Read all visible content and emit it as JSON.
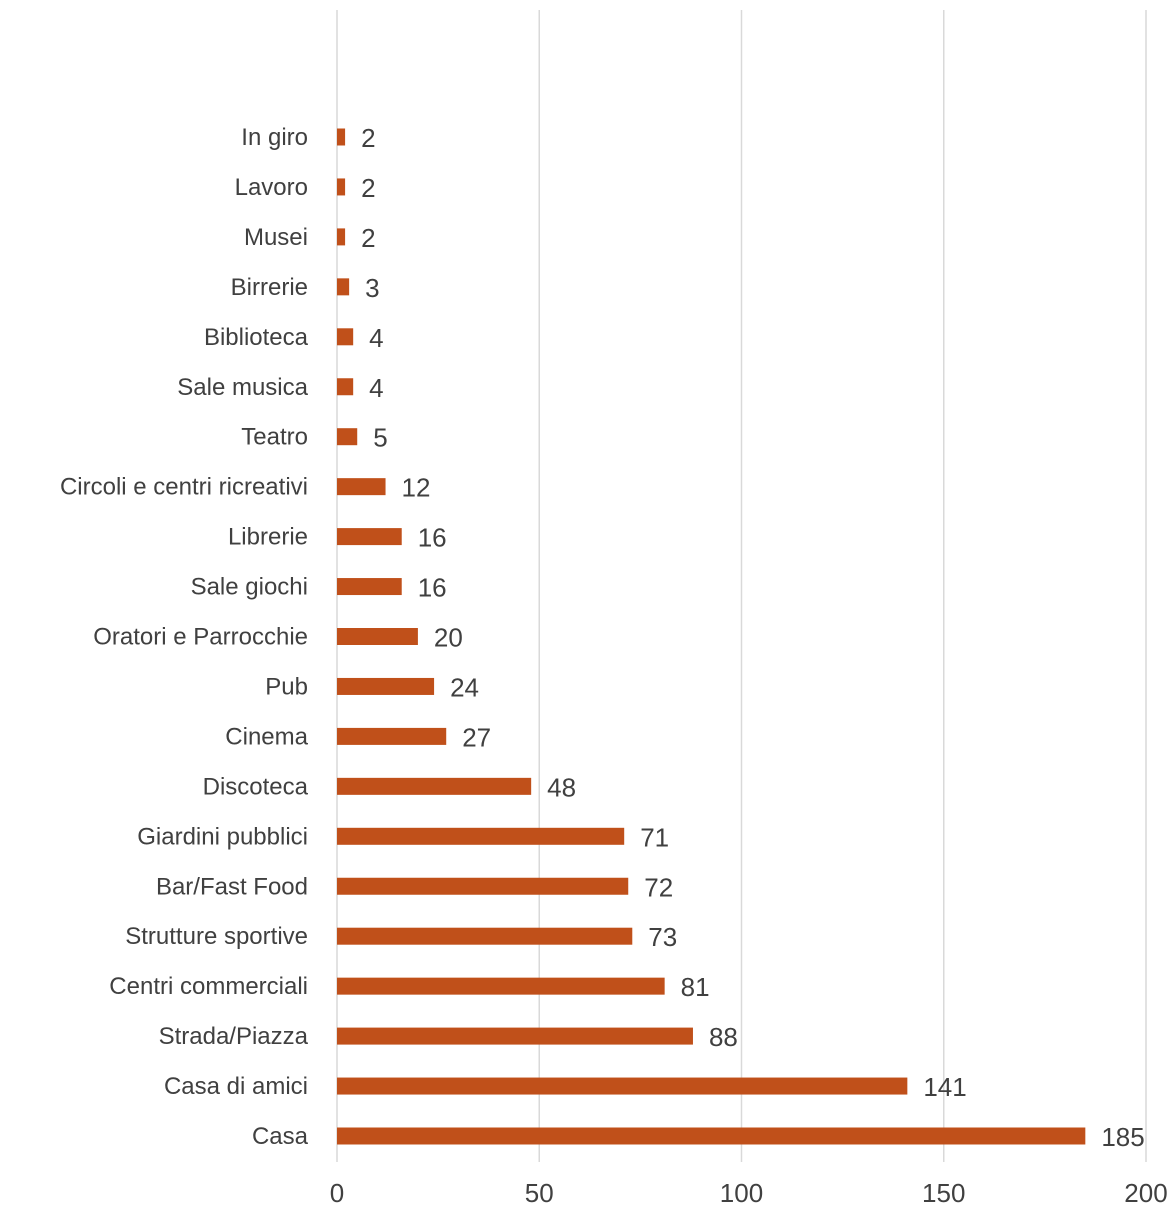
{
  "chart_data": {
    "type": "bar",
    "orientation": "horizontal",
    "title": "",
    "xlabel": "",
    "ylabel": "",
    "categories": [
      "In giro",
      "Lavoro",
      "Musei",
      "Birrerie",
      "Biblioteca",
      "Sale musica",
      "Teatro",
      "Circoli e centri ricreativi",
      "Librerie",
      "Sale giochi",
      "Oratori e Parrocchie",
      "Pub",
      "Cinema",
      "Discoteca",
      "Giardini pubblici",
      "Bar/Fast Food",
      "Strutture sportive",
      "Centri commerciali",
      "Strada/Piazza",
      "Casa di amici",
      "Casa"
    ],
    "values": [
      2,
      2,
      2,
      3,
      4,
      4,
      5,
      12,
      16,
      16,
      20,
      24,
      27,
      48,
      71,
      72,
      73,
      81,
      88,
      141,
      185
    ],
    "xlim": [
      0,
      200
    ],
    "x_ticks": [
      0,
      50,
      100,
      150,
      200
    ],
    "x_tick_labels": [
      "0",
      "50",
      "100",
      "150",
      "200"
    ],
    "grid": true,
    "data_labels": true,
    "legend": "none",
    "bar_color": "#c0501a"
  }
}
